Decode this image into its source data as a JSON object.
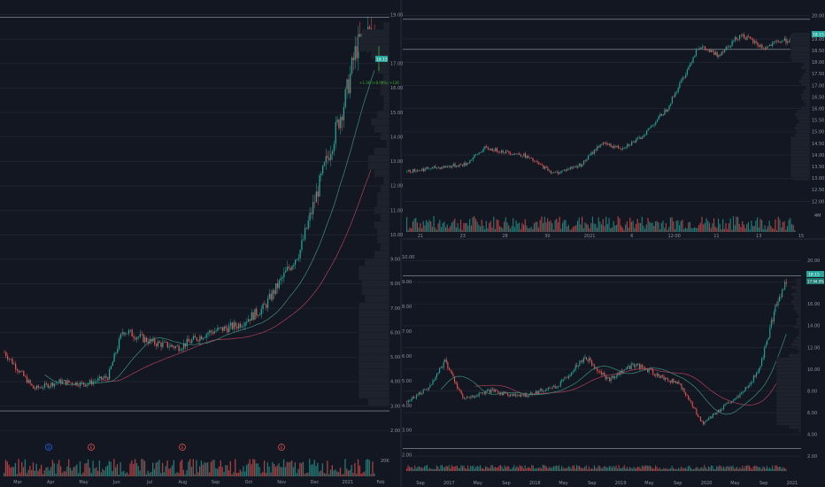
{
  "colors": {
    "background": "#131722",
    "grid": "#242a36",
    "up": "#26a69a",
    "down": "#ef5350",
    "ma_red": "#b0405a",
    "ma_green": "#3f8f7c",
    "text": "#8c93a3",
    "price_tag": "#26a69a"
  },
  "chart_data": [
    {
      "id": "left",
      "type": "candlestick",
      "title": "",
      "x_ticks": [
        "Mar",
        "Apr",
        "May",
        "Jun",
        "Jul",
        "Aug",
        "Sep",
        "Oct",
        "Nov",
        "Dec",
        "2021",
        "Feb"
      ],
      "y_ticks": [
        2,
        3,
        4,
        5,
        6,
        7,
        8,
        9,
        10,
        11,
        12,
        13,
        14,
        15,
        16,
        17,
        18,
        19
      ],
      "ylim": [
        1.5,
        19.6
      ],
      "volume_label": "20K",
      "last_price": "18.15",
      "measure_label": "+1.36 (+8.09%) +136",
      "event_markers": [
        "D",
        "E",
        "E",
        "E"
      ],
      "horizontal_levels": [
        18.9,
        2.8
      ],
      "grid": true
    },
    {
      "id": "top-right",
      "type": "candlestick",
      "title": "",
      "x_ticks": [
        "21",
        "23",
        "28",
        "30",
        "2021",
        "6",
        "12:00",
        "11",
        "13",
        "15"
      ],
      "y_ticks": [
        12.0,
        13.0,
        14.0,
        15.0,
        16.0,
        17.0,
        18.0,
        19.0,
        20.0
      ],
      "ylim": [
        11.6,
        20.3
      ],
      "y_labels_text": [
        "20.00",
        "19.00",
        "18.50",
        "18.00",
        "17.50",
        "17.00",
        "16.50",
        "16.00",
        "15.50",
        "15.00",
        "14.50",
        "14.00",
        "13.50",
        "13.00",
        "12.50",
        "12.00"
      ],
      "volume_label": "4M",
      "last_price": "18.15",
      "horizontal_levels": [
        19.85,
        18.55
      ],
      "grid": true
    },
    {
      "id": "bottom-right",
      "type": "candlestick",
      "title": "",
      "x_ticks": [
        "Sep",
        "2017",
        "May",
        "Sep",
        "2018",
        "May",
        "Sep",
        "2019",
        "May",
        "Sep",
        "2020",
        "May",
        "Sep",
        "2021"
      ],
      "y_ticks": [
        2,
        4,
        6,
        8,
        10,
        12,
        14,
        16,
        18,
        20
      ],
      "ylim": [
        1.2,
        21
      ],
      "y_labels_left": [
        "10.00",
        "9.00",
        "8.00",
        "7.00",
        "6.00",
        "5.00",
        "4.00",
        "3.00",
        "2.00"
      ],
      "y_labels_right": [
        "20.00",
        "16.00",
        "14.00",
        "12.00",
        "10.00",
        "8.00",
        "6.00",
        "4.00",
        "2.00"
      ],
      "volume_label": "",
      "last_price": "18.15",
      "last_price_sub": "17.94.0%",
      "horizontal_levels": [
        18.6,
        2.7
      ],
      "grid": true
    }
  ]
}
